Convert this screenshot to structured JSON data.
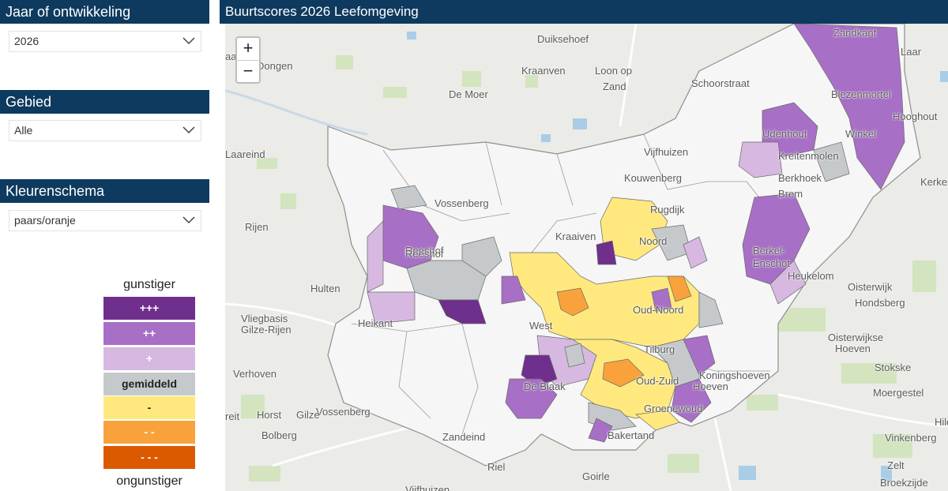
{
  "sidebar": {
    "year": {
      "title": "Jaar of ontwikkeling",
      "value": "2026"
    },
    "area": {
      "title": "Gebied",
      "value": "Alle"
    },
    "scheme": {
      "title": "Kleurenschema",
      "value": "paars/oranje"
    }
  },
  "legend": {
    "top_label": "gunstiger",
    "bottom_label": "ongunstiger",
    "items": [
      {
        "label": "+++",
        "color": "#6f2f8c"
      },
      {
        "label": "++",
        "color": "#a86fc6"
      },
      {
        "label": "+",
        "color": "#d6b8e0"
      },
      {
        "label": "gemiddeld",
        "color": "#c5c9cc"
      },
      {
        "label": "-",
        "color": "#ffe97f"
      },
      {
        "label": "- -",
        "color": "#f9a23b"
      },
      {
        "label": "- - -",
        "color": "#db5a00"
      }
    ]
  },
  "map": {
    "title": "Buurtscores 2026 Leefomgeving",
    "zoom_in": "+",
    "zoom_out": "−",
    "places": [
      "Duiksehoef",
      "Kraanven",
      "Loon op",
      "Zand",
      "De Moer",
      "Schoorstraat",
      "Zandkant",
      "Laar",
      "Biezenmortel",
      "Hooghout",
      "Udenhout",
      "Winkel",
      "Kreitenmolen",
      "Berkhoek",
      "Brem",
      "Kerkeind",
      "Dongen",
      "Laareind",
      "Vijfhuizen",
      "Kouwenberg",
      "Vossenberg",
      "Rugdijk",
      "Kraaiven",
      "Noord",
      "Rijen",
      "Reeshof",
      "Berkel-",
      "Enschot",
      "Heukelom",
      "Oisterwijk",
      "Hondsberg",
      "Hulten",
      "Vliegbasis",
      "Gilze-Rijen",
      "Heikant",
      "Oud-Noord",
      "West",
      "Tilburg",
      "Oisterwijkse",
      "Hoeven",
      "Verhoven",
      "De Blaak",
      "Oud-Zuid",
      "Stokske",
      "Moergestel",
      "Vossenberg",
      "Horst",
      "Gilze",
      "Bolberg",
      "Zandeind",
      "Bakertand",
      "Hild",
      "Vinkenberg",
      "Zelt",
      "Riel",
      "Goirle",
      "Vijfhuizen",
      "Broekzijde",
      "Reeshof",
      "Groenewoud",
      "Koningshoeven",
      "Hoeven",
      "aarle",
      "reit"
    ]
  }
}
